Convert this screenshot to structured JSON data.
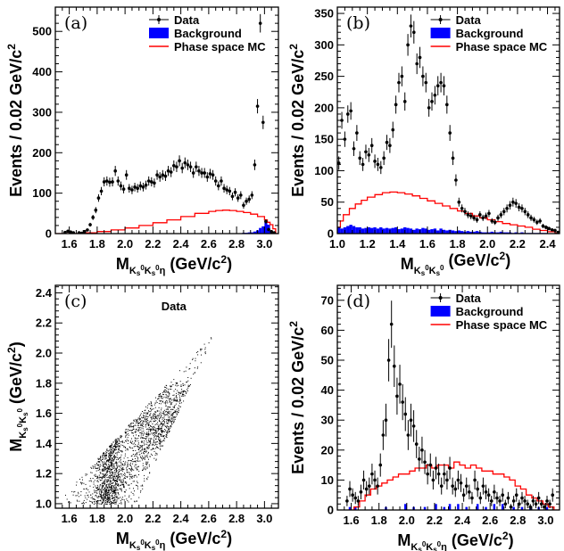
{
  "chart_data": [
    {
      "id": "a",
      "type": "histogram",
      "panel_label": "(a)",
      "xlabel": "M",
      "xlabel_sub": "K",
      "xlabel_sub2": "s",
      "xlabel_sup": "0",
      "xlabel_rest": "K",
      "xlabel_rest_sub": "s",
      "xlabel_rest_sup": "0",
      "xlabel_end": "η",
      "xlabel_units": "(GeV/c",
      "xlabel_units_sup": "2",
      "xlabel_units_end": ")",
      "ylabel": "Events / 0.02 GeV/c",
      "ylabel_sup": "2",
      "xlim": [
        1.5,
        3.1
      ],
      "ylim": [
        0,
        560
      ],
      "xticks": [
        "1.6",
        "1.8",
        "2.0",
        "2.2",
        "2.4",
        "2.6",
        "2.8",
        "3.0"
      ],
      "xtick_values": [
        1.6,
        1.8,
        2.0,
        2.2,
        2.4,
        2.6,
        2.8,
        3.0
      ],
      "yticks": [
        "0",
        "100",
        "200",
        "300",
        "400",
        "500"
      ],
      "ytick_values": [
        0,
        100,
        200,
        300,
        400,
        500
      ],
      "legend": [
        {
          "label": "Data",
          "kind": "marker"
        },
        {
          "label": "Background",
          "kind": "box",
          "color": "#0000ff"
        },
        {
          "label": "Phase space MC",
          "kind": "line",
          "color": "#ff0000"
        }
      ],
      "data_x": [
        1.55,
        1.57,
        1.59,
        1.61,
        1.63,
        1.65,
        1.67,
        1.69,
        1.71,
        1.73,
        1.75,
        1.77,
        1.79,
        1.81,
        1.83,
        1.85,
        1.87,
        1.89,
        1.91,
        1.93,
        1.95,
        1.97,
        1.99,
        2.01,
        2.03,
        2.05,
        2.07,
        2.09,
        2.11,
        2.13,
        2.15,
        2.17,
        2.19,
        2.21,
        2.23,
        2.25,
        2.27,
        2.29,
        2.31,
        2.33,
        2.35,
        2.37,
        2.39,
        2.41,
        2.43,
        2.45,
        2.47,
        2.49,
        2.51,
        2.53,
        2.55,
        2.57,
        2.59,
        2.61,
        2.63,
        2.65,
        2.67,
        2.69,
        2.71,
        2.73,
        2.75,
        2.77,
        2.79,
        2.81,
        2.83,
        2.85,
        2.87,
        2.89,
        2.91,
        2.93,
        2.95,
        2.97,
        2.99,
        3.01,
        3.03,
        3.05,
        3.07
      ],
      "data_y": [
        0,
        3,
        6,
        4,
        2,
        0,
        2,
        1,
        5,
        9,
        22,
        40,
        58,
        88,
        105,
        128,
        130,
        127,
        128,
        155,
        130,
        118,
        110,
        145,
        112,
        108,
        115,
        112,
        118,
        115,
        120,
        130,
        128,
        125,
        145,
        140,
        145,
        142,
        155,
        152,
        168,
        165,
        180,
        162,
        175,
        170,
        165,
        150,
        165,
        155,
        150,
        150,
        140,
        148,
        145,
        130,
        118,
        130,
        112,
        108,
        105,
        92,
        102,
        88,
        95,
        70,
        80,
        85,
        95,
        170,
        315,
        520,
        275,
        30,
        10,
        5,
        2
      ],
      "bkg_y": [
        0,
        0,
        0,
        0,
        0,
        0,
        0,
        0,
        0,
        0,
        0,
        0,
        0,
        0,
        0,
        0,
        0,
        0,
        0,
        0,
        0,
        0,
        0,
        0,
        0,
        0,
        0,
        0,
        0,
        0,
        0,
        0,
        0,
        0,
        0,
        0,
        0,
        0,
        0,
        0,
        0,
        0,
        0,
        0,
        0,
        0,
        0,
        0,
        0,
        0,
        0,
        0,
        0,
        0,
        0,
        0,
        0,
        0,
        0,
        0,
        0,
        0,
        0,
        0,
        0,
        2,
        2,
        3,
        3,
        5,
        8,
        14,
        18,
        35,
        22,
        5,
        0
      ],
      "mc_edges": [
        1.5,
        1.6,
        1.7,
        1.8,
        1.9,
        2.0,
        2.1,
        2.2,
        2.3,
        2.4,
        2.5,
        2.6,
        2.65,
        2.7,
        2.75,
        2.8,
        2.85,
        2.9,
        2.95,
        3.0,
        3.02,
        3.04,
        3.06,
        3.08,
        3.1
      ],
      "mc_y": [
        0,
        0,
        2,
        5,
        9,
        14,
        20,
        27,
        34,
        42,
        50,
        55,
        57,
        58,
        57,
        55,
        52,
        48,
        42,
        34,
        28,
        22,
        12,
        0
      ]
    },
    {
      "id": "b",
      "type": "histogram",
      "panel_label": "(b)",
      "xlabel": "M",
      "xlabel_sub": "K",
      "xlabel_sub2": "s",
      "xlabel_sup": "0",
      "xlabel_rest": "K",
      "xlabel_rest_sub": "s",
      "xlabel_rest_sup": "0",
      "xlabel_end": "",
      "xlabel_units": "(GeV/c",
      "xlabel_units_sup": "2",
      "xlabel_units_end": ")",
      "ylabel": "Events / 0.02 GeV/c",
      "ylabel_sup": "2",
      "xlim": [
        1.0,
        2.48
      ],
      "ylim": [
        0,
        360
      ],
      "xticks": [
        "1.0",
        "1.2",
        "1.4",
        "1.6",
        "1.8",
        "2.0",
        "2.2",
        "2.4"
      ],
      "xtick_values": [
        1.0,
        1.2,
        1.4,
        1.6,
        1.8,
        2.0,
        2.2,
        2.4
      ],
      "yticks": [
        "0",
        "50",
        "100",
        "150",
        "200",
        "250",
        "300",
        "350"
      ],
      "ytick_values": [
        0,
        50,
        100,
        150,
        200,
        250,
        300,
        350
      ],
      "legend": [
        {
          "label": "Data",
          "kind": "marker"
        },
        {
          "label": "Background",
          "kind": "box",
          "color": "#0000ff"
        },
        {
          "label": "Phase space MC",
          "kind": "line",
          "color": "#ff0000"
        }
      ],
      "data_x": [
        1.01,
        1.03,
        1.05,
        1.07,
        1.09,
        1.11,
        1.13,
        1.15,
        1.17,
        1.19,
        1.21,
        1.23,
        1.25,
        1.27,
        1.29,
        1.31,
        1.33,
        1.35,
        1.37,
        1.39,
        1.41,
        1.43,
        1.45,
        1.47,
        1.49,
        1.51,
        1.53,
        1.55,
        1.57,
        1.59,
        1.61,
        1.63,
        1.65,
        1.67,
        1.69,
        1.71,
        1.73,
        1.75,
        1.77,
        1.79,
        1.81,
        1.83,
        1.85,
        1.87,
        1.89,
        1.91,
        1.93,
        1.95,
        1.97,
        1.99,
        2.01,
        2.03,
        2.05,
        2.07,
        2.09,
        2.11,
        2.13,
        2.15,
        2.17,
        2.19,
        2.21,
        2.23,
        2.25,
        2.27,
        2.29,
        2.31,
        2.33,
        2.35,
        2.37,
        2.39,
        2.41,
        2.43,
        2.45,
        2.47
      ],
      "data_y": [
        112,
        180,
        150,
        190,
        195,
        135,
        160,
        120,
        110,
        130,
        125,
        140,
        115,
        110,
        105,
        120,
        145,
        140,
        165,
        205,
        240,
        250,
        210,
        300,
        330,
        320,
        270,
        280,
        250,
        240,
        200,
        210,
        220,
        235,
        240,
        235,
        205,
        160,
        120,
        85,
        50,
        40,
        35,
        30,
        28,
        25,
        22,
        30,
        25,
        28,
        32,
        20,
        18,
        25,
        30,
        35,
        40,
        45,
        50,
        48,
        42,
        40,
        35,
        30,
        25,
        22,
        18,
        20,
        12,
        10,
        8,
        6,
        5,
        2
      ],
      "bkg_y": [
        10,
        8,
        10,
        12,
        14,
        12,
        10,
        10,
        8,
        9,
        10,
        9,
        10,
        8,
        10,
        8,
        9,
        8,
        9,
        10,
        7,
        8,
        10,
        9,
        8,
        6,
        8,
        7,
        9,
        8,
        6,
        7,
        8,
        5,
        8,
        6,
        5,
        6,
        5,
        4,
        5,
        4,
        3,
        4,
        3,
        3,
        4,
        3,
        2,
        2,
        2,
        3,
        2,
        2,
        3,
        2,
        2,
        2,
        1,
        2,
        1,
        2,
        1,
        1,
        1,
        1,
        1,
        1,
        1,
        1,
        0,
        0,
        0,
        0
      ],
      "mc_edges": [
        1.0,
        1.02,
        1.04,
        1.08,
        1.12,
        1.16,
        1.2,
        1.25,
        1.3,
        1.35,
        1.4,
        1.45,
        1.5,
        1.55,
        1.6,
        1.65,
        1.7,
        1.75,
        1.8,
        1.85,
        1.9,
        1.95,
        2.0,
        2.05,
        2.1,
        2.15,
        2.2,
        2.25,
        2.3,
        2.35,
        2.4,
        2.45,
        2.48
      ],
      "mc_y": [
        10,
        20,
        30,
        40,
        47,
        53,
        58,
        62,
        65,
        66,
        65,
        63,
        60,
        56,
        52,
        48,
        44,
        40,
        36,
        32,
        28,
        25,
        22,
        19,
        16,
        14,
        12,
        10,
        7,
        5,
        3,
        1
      ]
    },
    {
      "id": "c",
      "type": "scatter",
      "panel_label": "(c)",
      "title": "Data",
      "xlabel": "M",
      "xlabel_sub": "K",
      "xlabel_sub2": "s",
      "xlabel_sup": "0",
      "xlabel_rest": "K",
      "xlabel_rest_sub": "s",
      "xlabel_rest_sup": "0",
      "xlabel_end": "η",
      "xlabel_units": "(GeV/c",
      "xlabel_units_sup": "2",
      "xlabel_units_end": ")",
      "ylabel": "M",
      "ylabel_sub": "K",
      "ylabel_sub2": "s",
      "ylabel_sup": "0",
      "ylabel_rest": "K",
      "ylabel_rest_sub": "s",
      "ylabel_rest_sup": "0",
      "ylabel_units": "(GeV/c",
      "ylabel_units_sup": "2",
      "ylabel_units_end": ")",
      "xlim": [
        1.5,
        3.1
      ],
      "ylim": [
        0.97,
        2.45
      ],
      "xticks": [
        "1.6",
        "1.8",
        "2.0",
        "2.2",
        "2.4",
        "2.6",
        "2.8",
        "3.0"
      ],
      "xtick_values": [
        1.6,
        1.8,
        2.0,
        2.2,
        2.4,
        2.6,
        2.8,
        3.0
      ],
      "yticks": [
        "1.0",
        "1.2",
        "1.4",
        "1.6",
        "1.8",
        "2.0",
        "2.2",
        "2.4"
      ],
      "ytick_values": [
        1.0,
        1.2,
        1.4,
        1.6,
        1.8,
        2.0,
        2.2,
        2.4
      ]
    },
    {
      "id": "d",
      "type": "histogram",
      "panel_label": "(d)",
      "xlabel": "M",
      "xlabel_sub": "K",
      "xlabel_sub2": "s",
      "xlabel_sup": "0",
      "xlabel_rest": "K",
      "xlabel_rest_sub": "s",
      "xlabel_rest_sup": "0",
      "xlabel_end": "η",
      "xlabel_units": "(GeV/c",
      "xlabel_units_sup": "2",
      "xlabel_units_end": ")",
      "ylabel": "Events / 0.02 GeV/c",
      "ylabel_sup": "2",
      "xlim": [
        1.5,
        3.1
      ],
      "ylim": [
        0,
        75
      ],
      "xticks": [
        "1.6",
        "1.8",
        "2.0",
        "2.2",
        "2.4",
        "2.6",
        "2.8",
        "3.0"
      ],
      "xtick_values": [
        1.6,
        1.8,
        2.0,
        2.2,
        2.4,
        2.6,
        2.8,
        3.0
      ],
      "yticks": [
        "0",
        "10",
        "20",
        "30",
        "40",
        "50",
        "60",
        "70"
      ],
      "ytick_values": [
        0,
        10,
        20,
        30,
        40,
        50,
        60,
        70
      ],
      "legend": [
        {
          "label": "Data",
          "kind": "marker"
        },
        {
          "label": "Background",
          "kind": "box",
          "color": "#0000ff"
        },
        {
          "label": "Phase space MC",
          "kind": "line",
          "color": "#ff0000"
        }
      ],
      "data_x": [
        1.55,
        1.57,
        1.59,
        1.61,
        1.63,
        1.65,
        1.67,
        1.69,
        1.71,
        1.73,
        1.75,
        1.77,
        1.79,
        1.81,
        1.83,
        1.85,
        1.87,
        1.89,
        1.91,
        1.93,
        1.95,
        1.97,
        1.99,
        2.01,
        2.03,
        2.05,
        2.07,
        2.09,
        2.11,
        2.13,
        2.15,
        2.17,
        2.19,
        2.21,
        2.23,
        2.25,
        2.27,
        2.29,
        2.31,
        2.33,
        2.35,
        2.37,
        2.39,
        2.41,
        2.43,
        2.45,
        2.47,
        2.49,
        2.51,
        2.53,
        2.55,
        2.57,
        2.59,
        2.61,
        2.63,
        2.65,
        2.67,
        2.69,
        2.71,
        2.73,
        2.75,
        2.77,
        2.79,
        2.81,
        2.83,
        2.85,
        2.87,
        2.89,
        2.91,
        2.93,
        2.95,
        2.97,
        2.99,
        3.01,
        3.03,
        3.05,
        3.07
      ],
      "data_y": [
        0,
        3,
        7,
        5,
        4,
        3,
        6,
        10,
        7,
        8,
        12,
        10,
        8,
        15,
        25,
        30,
        50,
        62,
        48,
        38,
        42,
        36,
        32,
        25,
        30,
        28,
        22,
        17,
        20,
        16,
        12,
        15,
        10,
        14,
        12,
        8,
        12,
        10,
        14,
        8,
        7,
        10,
        9,
        5,
        8,
        6,
        4,
        10,
        7,
        4,
        8,
        6,
        5,
        3,
        6,
        4,
        3,
        5,
        2,
        4,
        1,
        3,
        5,
        2,
        4,
        3,
        2,
        1,
        3,
        2,
        4,
        2,
        1,
        3,
        2,
        5,
        0
      ],
      "bkg_y": [
        0,
        0,
        0,
        0,
        0,
        0,
        0,
        0,
        0,
        0,
        0,
        0,
        0,
        0,
        0,
        0,
        0,
        0,
        0,
        0,
        0,
        0,
        0,
        0,
        0,
        0,
        0,
        0,
        0,
        0,
        0,
        0,
        0,
        0,
        0,
        0,
        0,
        0,
        0,
        0,
        0,
        0,
        0,
        0,
        0,
        0,
        0,
        0,
        0,
        0,
        0,
        0,
        0,
        0,
        0,
        0,
        0,
        0,
        0,
        0,
        0,
        0,
        0,
        0,
        0,
        0,
        0,
        0,
        0,
        0,
        0,
        0,
        0,
        0,
        0,
        0,
        0
      ],
      "bkg_marks": [
        [
          1.59,
          1
        ],
        [
          1.63,
          1
        ],
        [
          1.85,
          1
        ],
        [
          1.99,
          2
        ],
        [
          2.05,
          1
        ],
        [
          2.13,
          1
        ],
        [
          2.21,
          2
        ],
        [
          2.27,
          1
        ],
        [
          2.31,
          2
        ],
        [
          2.37,
          2
        ],
        [
          2.43,
          1
        ],
        [
          2.51,
          2
        ],
        [
          2.57,
          1
        ],
        [
          2.63,
          2
        ],
        [
          2.69,
          2
        ],
        [
          2.77,
          1
        ],
        [
          2.83,
          1
        ],
        [
          2.89,
          1
        ],
        [
          2.95,
          1
        ],
        [
          3.01,
          1
        ]
      ],
      "mc_edges": [
        1.58,
        1.62,
        1.66,
        1.7,
        1.74,
        1.78,
        1.82,
        1.86,
        1.9,
        1.94,
        1.98,
        2.02,
        2.06,
        2.1,
        2.14,
        2.18,
        2.22,
        2.26,
        2.3,
        2.34,
        2.38,
        2.42,
        2.46,
        2.5,
        2.54,
        2.58,
        2.62,
        2.66,
        2.7,
        2.74,
        2.78,
        2.82,
        2.86,
        2.9,
        2.94,
        2.98,
        3.02,
        3.06,
        3.1
      ],
      "mc_y": [
        0,
        1,
        3,
        5,
        7,
        8,
        9,
        10,
        11,
        12,
        12,
        13,
        14,
        14,
        15,
        14,
        15,
        15,
        14,
        16,
        15,
        14,
        15,
        14,
        13,
        13,
        12,
        12,
        11,
        10,
        8,
        7,
        5,
        4,
        3,
        2,
        1,
        0
      ]
    }
  ]
}
